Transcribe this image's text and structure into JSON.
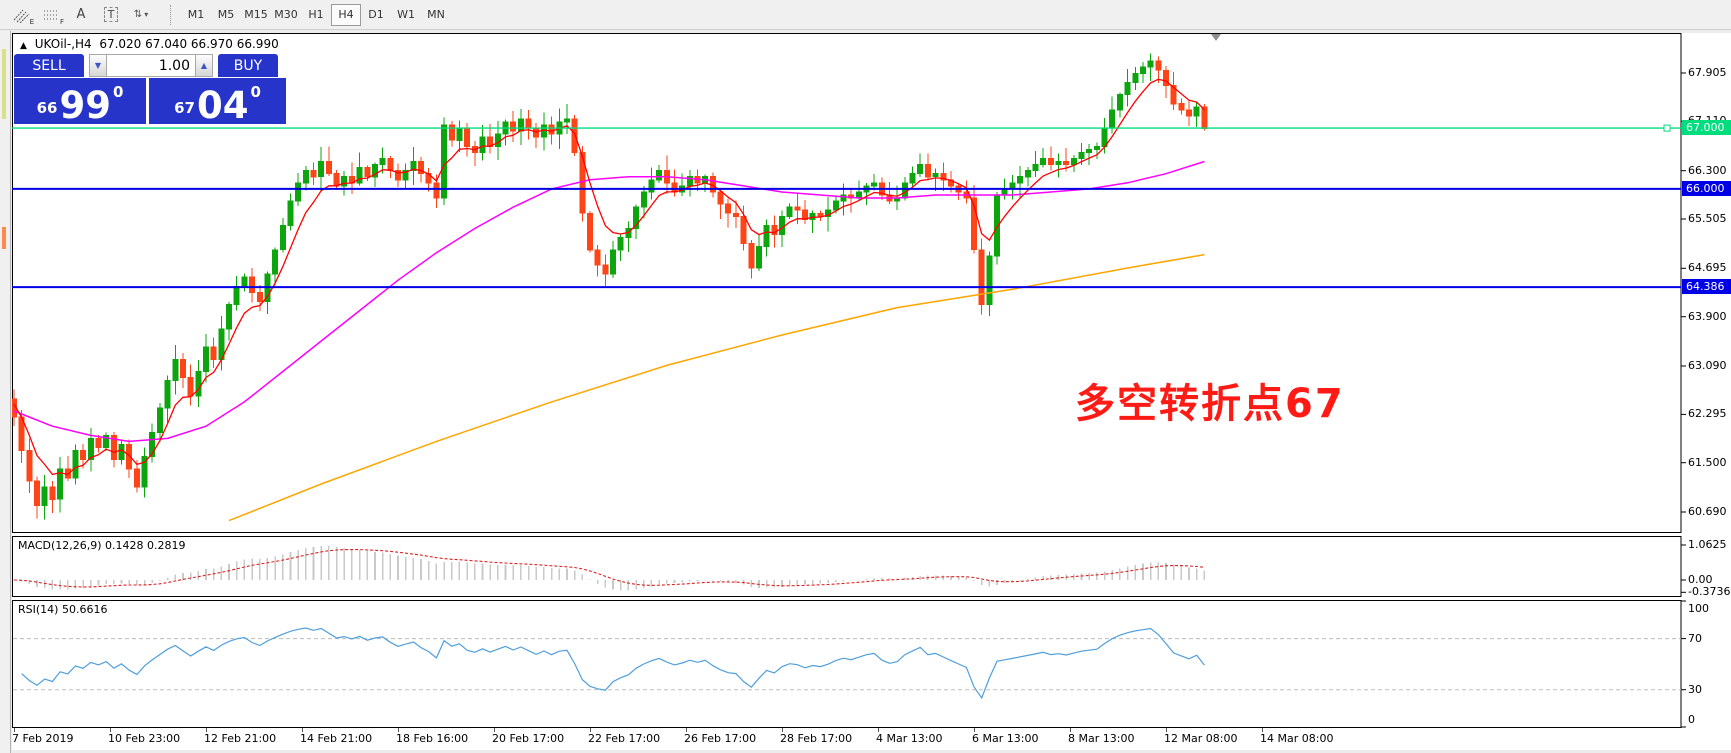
{
  "toolbar": {
    "tools": [
      {
        "id": "equidistant-channel-tool",
        "label": "E"
      },
      {
        "id": "fibonacci-tool",
        "label": "F"
      },
      {
        "id": "text-label-tool",
        "label": "A"
      },
      {
        "id": "text-box-tool",
        "label": "T"
      },
      {
        "id": "arrows-tool",
        "label": ""
      }
    ],
    "timeframes": [
      "M1",
      "M5",
      "M15",
      "M30",
      "H1",
      "H4",
      "D1",
      "W1",
      "MN"
    ],
    "active_timeframe": "H4"
  },
  "chart_header": {
    "collapse_icon": "▲",
    "symbol": "UKOil-,H4",
    "ohlc": "67.020 67.040 66.970 66.990"
  },
  "trade_panel": {
    "sell_label": "SELL",
    "buy_label": "BUY",
    "volume": "1.00",
    "volume_down_glyph": "▼",
    "volume_up_glyph": "▲",
    "sell_price": {
      "small": "66",
      "large": "99",
      "sup": "0"
    },
    "buy_price": {
      "small": "67",
      "large": "04",
      "sup": "0"
    }
  },
  "main_chart": {
    "price_ticks": [
      "67.905",
      "67.110",
      "66.300",
      "65.505",
      "64.695",
      "63.900",
      "63.090",
      "62.295",
      "61.500",
      "60.690"
    ],
    "hlines": [
      {
        "price": 67.0,
        "label": "67.000",
        "type": "current"
      },
      {
        "price": 66.0,
        "label": "66.000",
        "type": "support"
      },
      {
        "price": 64.386,
        "label": "64.386",
        "type": "support"
      }
    ],
    "annotation": {
      "text": "多空转折点67",
      "color": "#fe1b15"
    }
  },
  "macd_panel": {
    "name": "MACD(12,26,9)",
    "values": "0.1428 0.2819",
    "ticks": [
      {
        "value": 1.0625,
        "label": "1.0625"
      },
      {
        "value": 0,
        "label": "0.00"
      },
      {
        "value": -0.3736,
        "label": "-0.3736"
      }
    ]
  },
  "rsi_panel": {
    "name": "RSI(14)",
    "value": "50.6616",
    "ticks": [
      {
        "value": 100,
        "label": "100"
      },
      {
        "value": 70,
        "label": "70"
      },
      {
        "value": 30,
        "label": "30"
      },
      {
        "value": 0,
        "label": "0"
      }
    ],
    "levels": [
      70,
      30
    ]
  },
  "time_axis": {
    "labels": [
      "7 Feb 2019",
      "10 Feb 23:00",
      "12 Feb 21:00",
      "14 Feb 21:00",
      "18 Feb 16:00",
      "20 Feb 17:00",
      "22 Feb 17:00",
      "26 Feb 17:00",
      "28 Feb 17:00",
      "4 Mar 13:00",
      "6 Mar 13:00",
      "8 Mar 13:00",
      "12 Mar 08:00",
      "14 Mar 08:00"
    ]
  },
  "colors": {
    "candle_up": "#0da50d",
    "candle_down": "#ff4518",
    "ma_fast": "#ff0000",
    "ma_medium": "#ff00ff",
    "ma_slow": "#ffa500",
    "current_price": "#00dd7e",
    "support_line": "#0000e6",
    "macd_histogram": "#c9c9c9",
    "macd_signal": "#dd2222",
    "rsi_line": "#4f9fdc",
    "panel_blue": "#2634c9",
    "annotation_red": "#fe1b15"
  },
  "chart_data": {
    "type": "candlestick",
    "symbol": "UKOil-",
    "timeframe": "H4",
    "last_ohlc": {
      "open": 67.02,
      "high": 67.04,
      "low": 66.97,
      "close": 66.99
    },
    "y_axis_range": [
      60.4,
      68.56
    ],
    "first_open": 62.55,
    "closes": [
      62.25,
      61.7,
      61.2,
      60.8,
      61.1,
      60.9,
      61.4,
      61.25,
      61.7,
      61.55,
      61.9,
      61.75,
      61.95,
      61.55,
      61.8,
      61.4,
      61.1,
      61.6,
      62.0,
      62.4,
      62.85,
      63.2,
      62.9,
      62.6,
      63.0,
      63.4,
      63.2,
      63.7,
      64.1,
      64.4,
      64.55,
      64.3,
      64.15,
      64.6,
      65.0,
      65.4,
      65.8,
      66.1,
      66.3,
      66.2,
      66.45,
      66.25,
      66.05,
      66.2,
      66.1,
      66.35,
      66.2,
      66.4,
      66.5,
      66.3,
      66.15,
      66.3,
      66.45,
      66.25,
      66.1,
      65.85,
      67.05,
      66.8,
      67.0,
      66.7,
      66.6,
      66.85,
      66.7,
      66.9,
      67.1,
      66.95,
      67.15,
      67.0,
      66.85,
      67.05,
      66.9,
      67.1,
      67.15,
      66.6,
      65.6,
      65.0,
      64.75,
      64.6,
      65.0,
      65.2,
      65.35,
      65.7,
      65.95,
      66.15,
      66.3,
      66.1,
      65.95,
      66.05,
      66.2,
      66.1,
      66.2,
      65.95,
      65.75,
      65.6,
      65.55,
      65.1,
      64.7,
      65.05,
      65.4,
      65.25,
      65.55,
      65.7,
      65.65,
      65.5,
      65.6,
      65.55,
      65.65,
      65.8,
      65.9,
      65.85,
      65.95,
      66.05,
      66.1,
      65.9,
      65.8,
      65.85,
      66.1,
      66.25,
      66.4,
      66.2,
      66.25,
      66.15,
      66.05,
      65.95,
      65.85,
      65.0,
      64.1,
      64.9,
      65.9,
      66.0,
      66.1,
      66.2,
      66.3,
      66.4,
      66.5,
      66.4,
      66.45,
      66.4,
      66.5,
      66.6,
      66.65,
      66.7,
      67.0,
      67.3,
      67.55,
      67.75,
      67.9,
      68.0,
      68.1,
      67.95,
      67.7,
      67.4,
      67.3,
      67.2,
      67.35,
      66.99
    ],
    "ma_fast_period": 6,
    "ma_medium_points": [
      [
        0,
        62.35
      ],
      [
        5,
        62.1
      ],
      [
        10,
        61.95
      ],
      [
        15,
        61.85
      ],
      [
        20,
        61.9
      ],
      [
        25,
        62.1
      ],
      [
        30,
        62.5
      ],
      [
        35,
        63.0
      ],
      [
        40,
        63.5
      ],
      [
        45,
        64.0
      ],
      [
        50,
        64.5
      ],
      [
        55,
        64.95
      ],
      [
        60,
        65.35
      ],
      [
        65,
        65.7
      ],
      [
        70,
        66.0
      ],
      [
        75,
        66.15
      ],
      [
        80,
        66.2
      ],
      [
        85,
        66.2
      ],
      [
        90,
        66.15
      ],
      [
        95,
        66.05
      ],
      [
        100,
        65.95
      ],
      [
        105,
        65.9
      ],
      [
        110,
        65.85
      ],
      [
        115,
        65.85
      ],
      [
        120,
        65.9
      ],
      [
        125,
        65.9
      ],
      [
        130,
        65.9
      ],
      [
        135,
        65.95
      ],
      [
        140,
        66.0
      ],
      [
        145,
        66.1
      ],
      [
        150,
        66.25
      ],
      [
        155,
        66.45
      ]
    ],
    "ma_slow_points": [
      [
        28,
        60.55
      ],
      [
        40,
        61.15
      ],
      [
        55,
        61.85
      ],
      [
        70,
        62.5
      ],
      [
        85,
        63.1
      ],
      [
        100,
        63.6
      ],
      [
        115,
        64.05
      ],
      [
        130,
        64.35
      ],
      [
        145,
        64.7
      ],
      [
        155,
        64.92
      ]
    ],
    "macd_params": {
      "fast": 12,
      "slow": 26,
      "signal": 9
    },
    "rsi_period": 14
  }
}
